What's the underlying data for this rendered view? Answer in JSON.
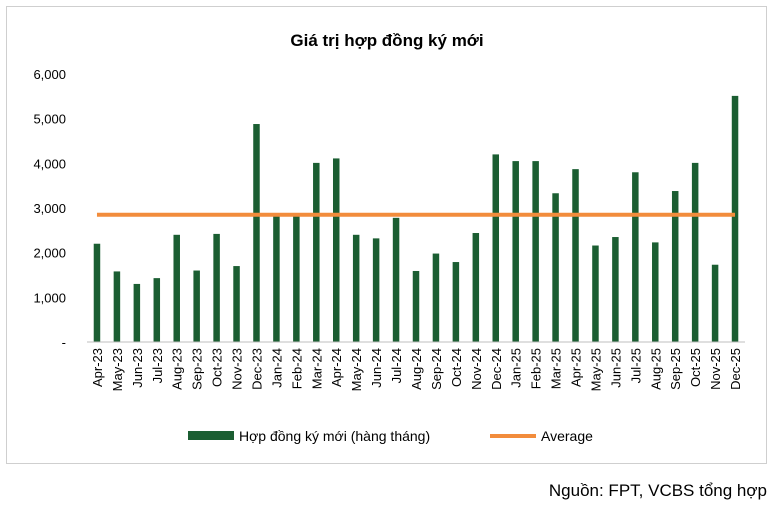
{
  "chart_data": {
    "type": "bar",
    "title": "Giá trị hợp đồng ký mới",
    "xlabel": "",
    "ylabel": "",
    "ylim": [
      0,
      6000
    ],
    "yticks": [
      "-",
      "1,000",
      "2,000",
      "3,000",
      "4,000",
      "5,000",
      "6,000"
    ],
    "grid": false,
    "legend_position": "bottom",
    "categories": [
      "Apr-23",
      "May-23",
      "Jun-23",
      "Jul-23",
      "Aug-23",
      "Sep-23",
      "Oct-23",
      "Nov-23",
      "Dec-23",
      "Jan-24",
      "Feb-24",
      "Mar-24",
      "Apr-24",
      "May-24",
      "Jun-24",
      "Jul-24",
      "Aug-24",
      "Sep-24",
      "Oct-24",
      "Nov-24",
      "Dec-24",
      "Jan-25",
      "Feb-25",
      "Mar-25",
      "Apr-25",
      "May-25",
      "Jun-25",
      "Jul-25",
      "Aug-25",
      "Sep-25",
      "Oct-25",
      "Nov-25",
      "Dec-25"
    ],
    "series": [
      {
        "name": "Hợp đồng ký mới (hàng tháng)",
        "kind": "bar",
        "color": "#1b5e32",
        "values": [
          2200,
          1580,
          1300,
          1430,
          2400,
          1600,
          2420,
          1700,
          4880,
          2870,
          2850,
          4010,
          4110,
          2400,
          2320,
          2780,
          1590,
          1980,
          1790,
          2440,
          4200,
          4050,
          4050,
          3330,
          3870,
          2160,
          2350,
          3800,
          2230,
          3380,
          4010,
          1730,
          5510
        ]
      },
      {
        "name": "Average",
        "kind": "line",
        "color": "#f28c3c",
        "value": 2850
      }
    ]
  },
  "source": "Nguồn: FPT, VCBS tổng hợp"
}
